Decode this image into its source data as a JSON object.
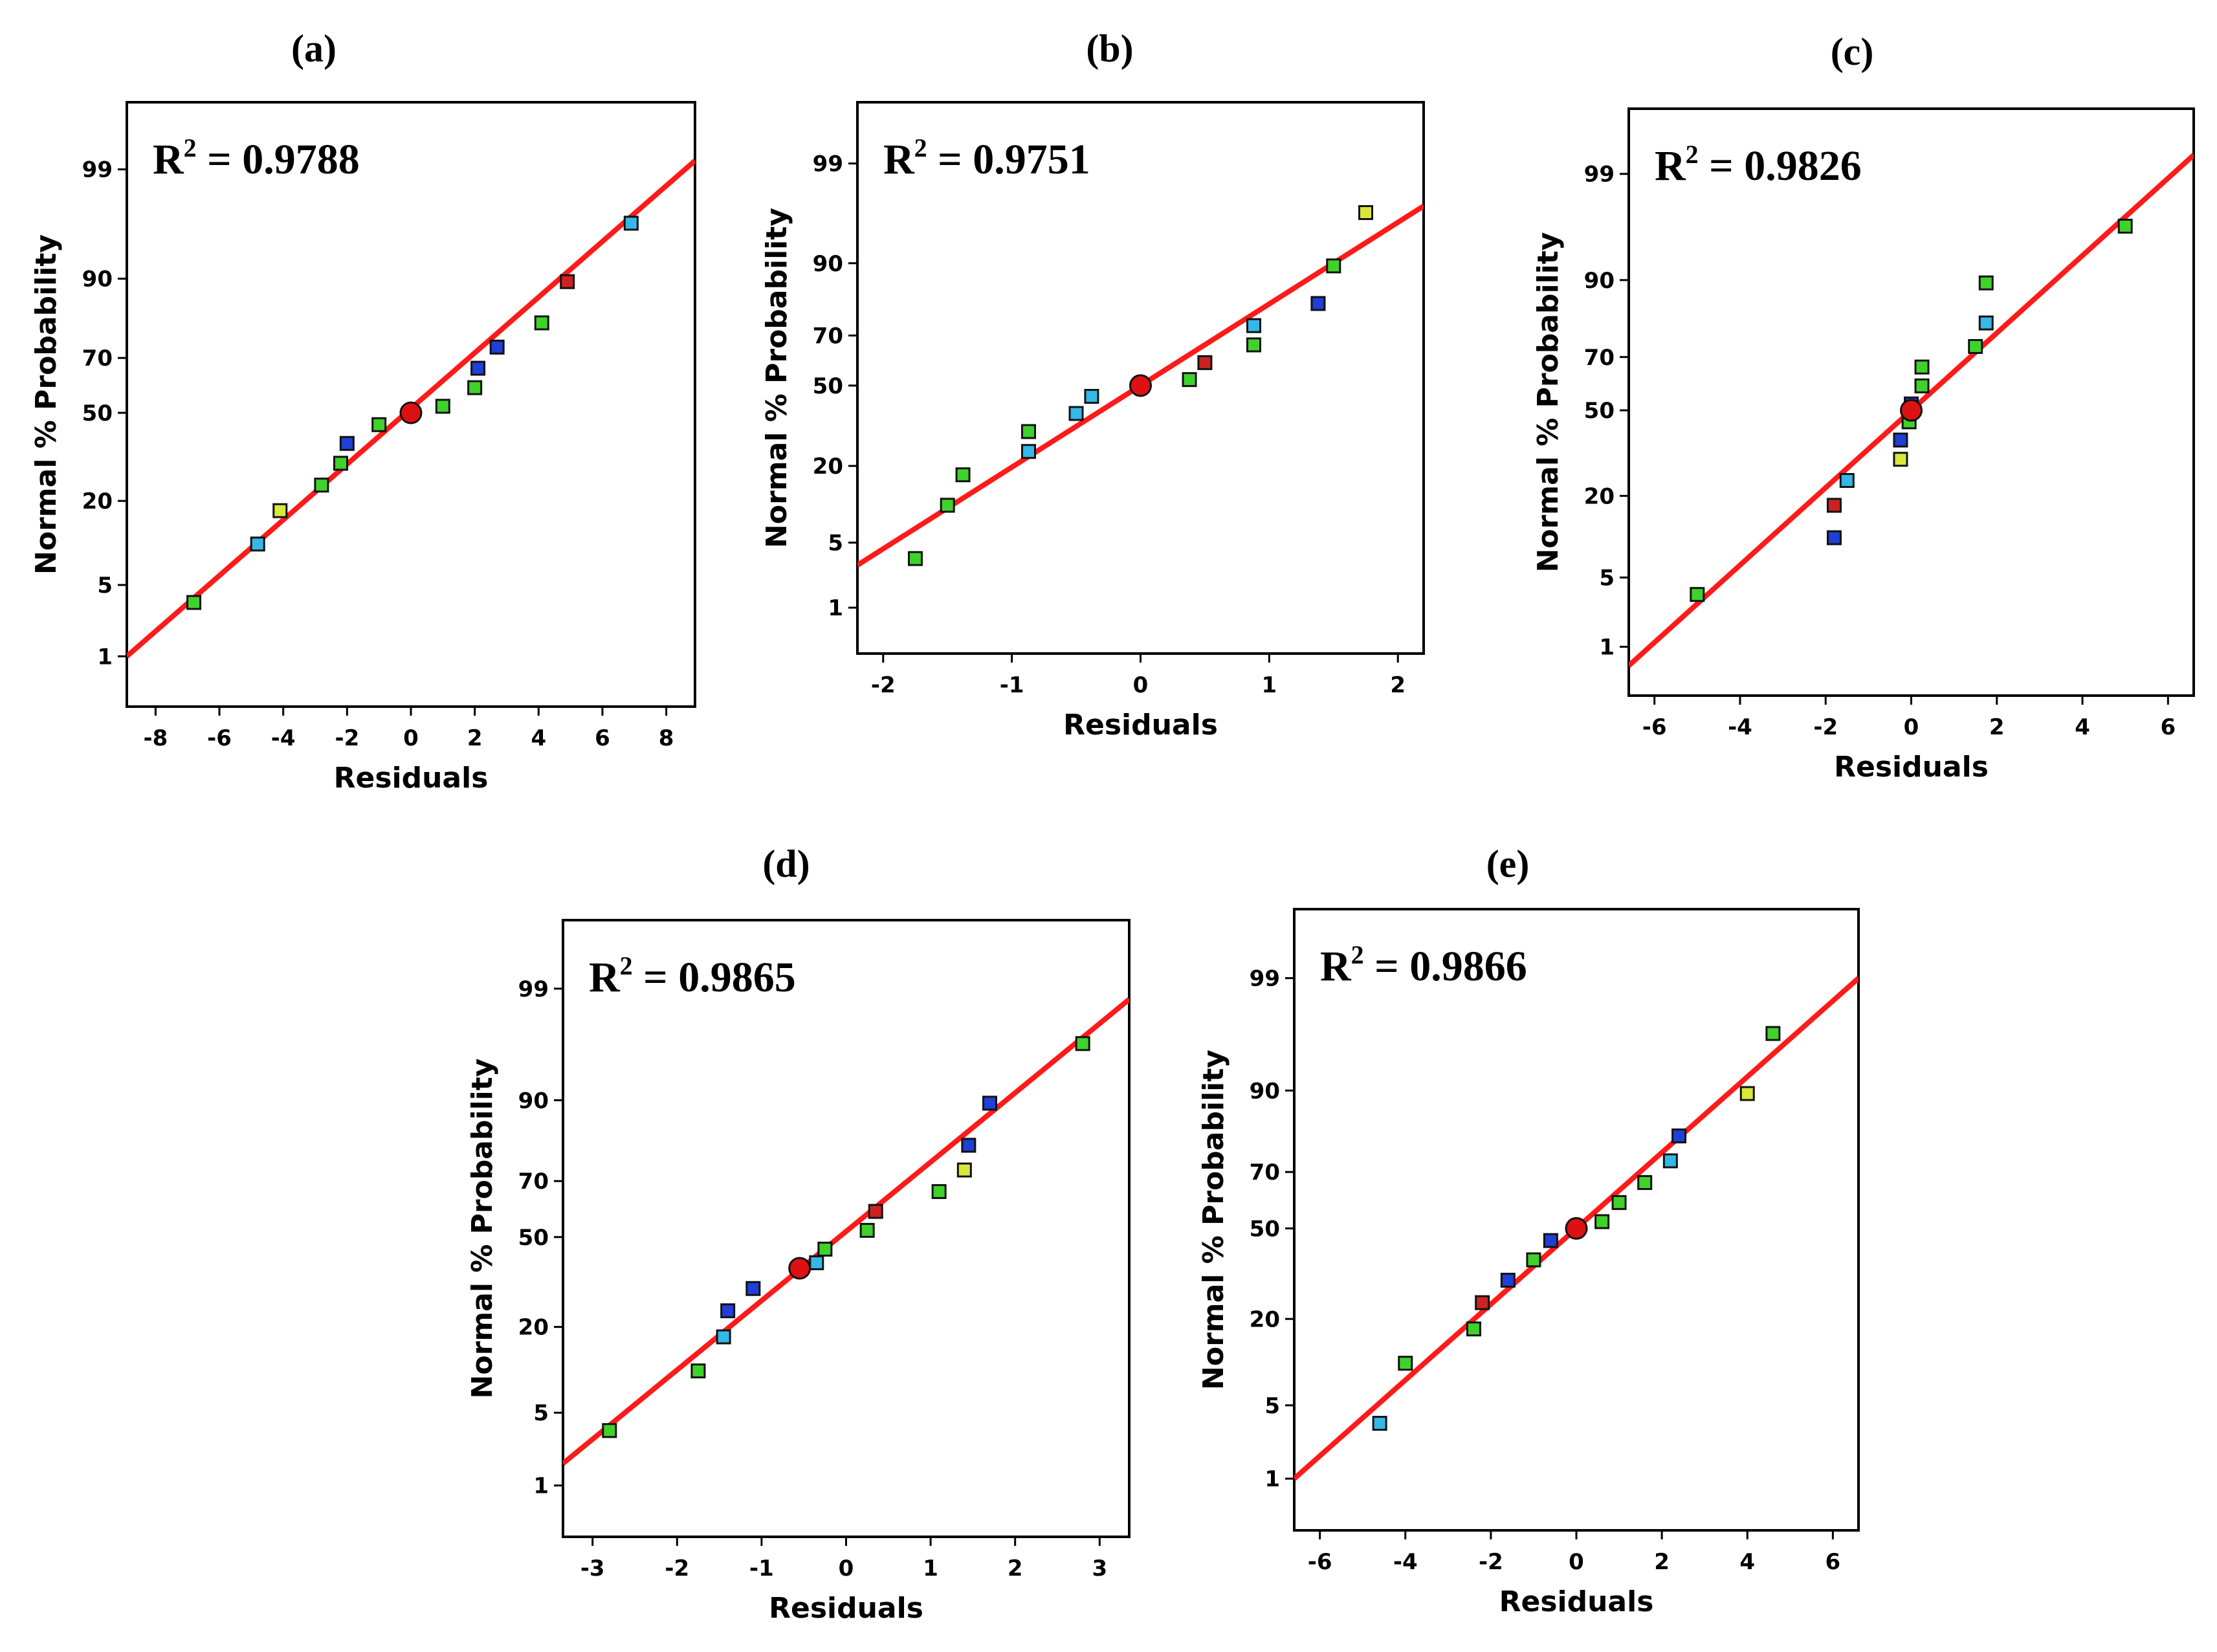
{
  "figure": {
    "description_free": true
  },
  "colors": {
    "fit_line": "#ff1a1a",
    "center_point": "#dd1111",
    "green": "#3fd22a",
    "cyan": "#34b8e8",
    "blue": "#1f3fd6",
    "yellow": "#d9e83a",
    "red": "#cc2222"
  },
  "chart_data": [
    {
      "id": "a",
      "type": "scatter",
      "panel_label": "(a)",
      "r2_label": "R",
      "r2_sup": "2",
      "r2_value": " = 0.9788",
      "xlabel": "Residuals",
      "ylabel": "Normal % Probability",
      "xlim": [
        -8.9,
        8.9
      ],
      "xticks": [
        -8,
        -6,
        -4,
        -2,
        0,
        2,
        4,
        6,
        8
      ],
      "yticks": [
        1,
        5,
        20,
        50,
        70,
        90,
        99
      ],
      "fit_line": [
        [
          -8.9,
          1.0
        ],
        [
          8.9,
          99.2
        ]
      ],
      "center": [
        0,
        50
      ],
      "points": [
        {
          "x": -6.8,
          "y": 3.5,
          "c": "green"
        },
        {
          "x": -4.8,
          "y": 10.5,
          "c": "cyan"
        },
        {
          "x": -4.1,
          "y": 17.5,
          "c": "yellow"
        },
        {
          "x": -2.8,
          "y": 24.5,
          "c": "green"
        },
        {
          "x": -2.2,
          "y": 31.5,
          "c": "green"
        },
        {
          "x": -2.0,
          "y": 38.5,
          "c": "blue"
        },
        {
          "x": -1.0,
          "y": 45.5,
          "c": "green"
        },
        {
          "x": 1.0,
          "y": 52.5,
          "c": "green"
        },
        {
          "x": 2.0,
          "y": 59.5,
          "c": "green"
        },
        {
          "x": 2.1,
          "y": 66.5,
          "c": "blue"
        },
        {
          "x": 2.7,
          "y": 73.5,
          "c": "blue"
        },
        {
          "x": 4.1,
          "y": 80.5,
          "c": "green"
        },
        {
          "x": 4.9,
          "y": 89.5,
          "c": "red"
        },
        {
          "x": 6.9,
          "y": 96.5,
          "c": "cyan"
        }
      ]
    },
    {
      "id": "b",
      "type": "scatter",
      "panel_label": "(b)",
      "r2_label": "R",
      "r2_sup": "2",
      "r2_value": " = 0.9751",
      "xlabel": "Residuals",
      "ylabel": "Normal % Probability",
      "xlim": [
        -2.2,
        2.2
      ],
      "xticks": [
        -2,
        -1,
        0,
        1,
        2
      ],
      "yticks": [
        1,
        5,
        20,
        50,
        70,
        90,
        99
      ],
      "fit_line": [
        [
          -2.2,
          3.0
        ],
        [
          2.2,
          97.0
        ]
      ],
      "center": [
        0,
        50
      ],
      "points": [
        {
          "x": -1.75,
          "y": 3.5,
          "c": "green"
        },
        {
          "x": -1.5,
          "y": 10.5,
          "c": "green"
        },
        {
          "x": -1.38,
          "y": 17.5,
          "c": "green"
        },
        {
          "x": -0.87,
          "y": 24.5,
          "c": "cyan"
        },
        {
          "x": -0.87,
          "y": 31.5,
          "c": "green"
        },
        {
          "x": -0.5,
          "y": 38.5,
          "c": "cyan"
        },
        {
          "x": -0.38,
          "y": 45.5,
          "c": "cyan"
        },
        {
          "x": 0.38,
          "y": 52.5,
          "c": "green"
        },
        {
          "x": 0.5,
          "y": 59.5,
          "c": "red"
        },
        {
          "x": 0.88,
          "y": 66.5,
          "c": "green"
        },
        {
          "x": 0.88,
          "y": 73.5,
          "c": "cyan"
        },
        {
          "x": 1.38,
          "y": 80.5,
          "c": "blue"
        },
        {
          "x": 1.5,
          "y": 89.5,
          "c": "green"
        },
        {
          "x": 1.75,
          "y": 96.5,
          "c": "yellow"
        }
      ]
    },
    {
      "id": "c",
      "type": "scatter",
      "panel_label": "(c)",
      "r2_label": "R",
      "r2_sup": "2",
      "r2_value": " = 0.9826",
      "xlabel": "Residuals",
      "ylabel": "Normal % Probability",
      "xlim": [
        -6.6,
        6.6
      ],
      "xticks": [
        -6,
        -4,
        -2,
        0,
        2,
        4,
        6
      ],
      "yticks": [
        1,
        5,
        20,
        50,
        70,
        90,
        99
      ],
      "fit_line": [
        [
          -6.6,
          0.6
        ],
        [
          6.6,
          99.4
        ]
      ],
      "center": [
        0,
        50
      ],
      "points": [
        {
          "x": -5.0,
          "y": 3.5,
          "c": "green"
        },
        {
          "x": -1.8,
          "y": 10.5,
          "c": "blue"
        },
        {
          "x": -1.8,
          "y": 17.5,
          "c": "red"
        },
        {
          "x": -1.5,
          "y": 24.5,
          "c": "cyan"
        },
        {
          "x": -0.25,
          "y": 31.5,
          "c": "yellow"
        },
        {
          "x": -0.25,
          "y": 38.5,
          "c": "blue"
        },
        {
          "x": -0.05,
          "y": 45.5,
          "c": "green"
        },
        {
          "x": 0.0,
          "y": 52.5,
          "c": "blue"
        },
        {
          "x": 0.25,
          "y": 59.5,
          "c": "green"
        },
        {
          "x": 0.25,
          "y": 66.5,
          "c": "green"
        },
        {
          "x": 1.5,
          "y": 73.5,
          "c": "green"
        },
        {
          "x": 1.75,
          "y": 80.5,
          "c": "cyan"
        },
        {
          "x": 1.75,
          "y": 89.5,
          "c": "green"
        },
        {
          "x": 5.0,
          "y": 96.5,
          "c": "green"
        }
      ]
    },
    {
      "id": "d",
      "type": "scatter",
      "panel_label": "(d)",
      "r2_label": "R",
      "r2_sup": "2",
      "r2_value": " = 0.9865",
      "xlabel": "Residuals",
      "ylabel": "Normal % Probability",
      "xlim": [
        -3.35,
        3.35
      ],
      "xticks": [
        -3,
        -2,
        -1,
        0,
        1,
        2,
        3
      ],
      "yticks": [
        1,
        5,
        20,
        50,
        70,
        90,
        99
      ],
      "fit_line": [
        [
          -3.35,
          1.7
        ],
        [
          3.35,
          98.7
        ]
      ],
      "center": [
        -0.55,
        38.5
      ],
      "points": [
        {
          "x": -2.8,
          "y": 3.5,
          "c": "green"
        },
        {
          "x": -1.75,
          "y": 10.5,
          "c": "green"
        },
        {
          "x": -1.45,
          "y": 17.5,
          "c": "cyan"
        },
        {
          "x": -1.4,
          "y": 24.5,
          "c": "blue"
        },
        {
          "x": -1.1,
          "y": 31.5,
          "c": "blue"
        },
        {
          "x": -0.35,
          "y": 40.5,
          "c": "cyan"
        },
        {
          "x": -0.25,
          "y": 45.5,
          "c": "green"
        },
        {
          "x": 0.25,
          "y": 52.5,
          "c": "green"
        },
        {
          "x": 0.35,
          "y": 59.5,
          "c": "red"
        },
        {
          "x": 1.1,
          "y": 66.5,
          "c": "green"
        },
        {
          "x": 1.4,
          "y": 73.5,
          "c": "yellow"
        },
        {
          "x": 1.45,
          "y": 80.5,
          "c": "blue"
        },
        {
          "x": 1.7,
          "y": 89.5,
          "c": "blue"
        },
        {
          "x": 2.8,
          "y": 96.5,
          "c": "green"
        }
      ]
    },
    {
      "id": "e",
      "type": "scatter",
      "panel_label": "(e)",
      "r2_label": "R",
      "r2_sup": "2",
      "r2_value": " = 0.9866",
      "xlabel": "Residuals",
      "ylabel": "Normal % Probability",
      "xlim": [
        -6.6,
        6.6
      ],
      "xticks": [
        -6,
        -4,
        -2,
        0,
        2,
        4,
        6
      ],
      "yticks": [
        1,
        5,
        20,
        50,
        70,
        90,
        99
      ],
      "fit_line": [
        [
          -6.6,
          1.0
        ],
        [
          6.6,
          99.0
        ]
      ],
      "center": [
        0,
        50
      ],
      "points": [
        {
          "x": -4.6,
          "y": 3.5,
          "c": "cyan"
        },
        {
          "x": -4.0,
          "y": 10.5,
          "c": "green"
        },
        {
          "x": -2.4,
          "y": 17.5,
          "c": "green"
        },
        {
          "x": -2.2,
          "y": 24.5,
          "c": "red"
        },
        {
          "x": -1.6,
          "y": 31.5,
          "c": "blue"
        },
        {
          "x": -1.0,
          "y": 38.5,
          "c": "green"
        },
        {
          "x": -0.6,
          "y": 45.5,
          "c": "blue"
        },
        {
          "x": 0.6,
          "y": 52.5,
          "c": "green"
        },
        {
          "x": 1.0,
          "y": 59.5,
          "c": "green"
        },
        {
          "x": 1.6,
          "y": 66.5,
          "c": "green"
        },
        {
          "x": 2.2,
          "y": 73.5,
          "c": "cyan"
        },
        {
          "x": 2.4,
          "y": 80.5,
          "c": "blue"
        },
        {
          "x": 4.0,
          "y": 89.5,
          "c": "yellow"
        },
        {
          "x": 4.6,
          "y": 96.5,
          "c": "green"
        }
      ]
    }
  ]
}
